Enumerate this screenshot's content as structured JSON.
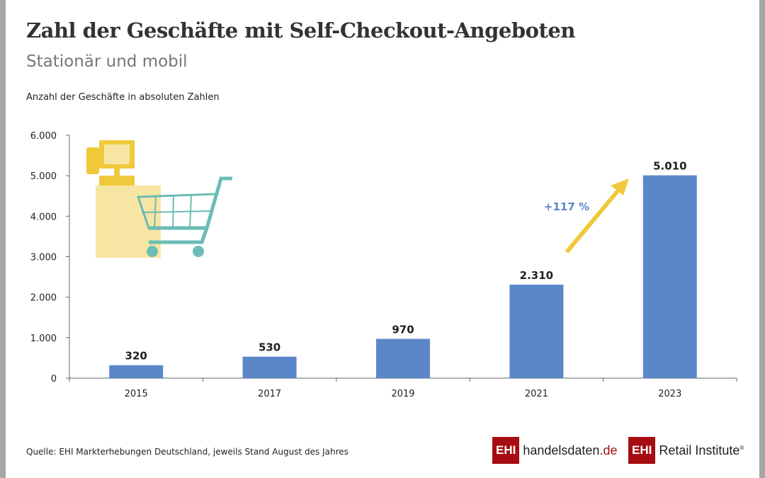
{
  "title": "Zahl der Geschäfte mit Self-Checkout-Angeboten",
  "subtitle": "Stationär und mobil",
  "source": "Quelle: EHI Markterhebungen Deutschland, jeweils Stand August des Jahres",
  "logos": {
    "ehi": "EHI",
    "handelsdaten": "handelsdaten",
    "handelsdaten_tld": ".de",
    "retail": "Retail Institute",
    "reg": "®"
  },
  "chart_data": {
    "type": "bar",
    "ylabel": "Anzahl der Geschäfte in absoluten Zahlen",
    "categories": [
      "2015",
      "2017",
      "2019",
      "2021",
      "2023"
    ],
    "values": [
      320,
      530,
      970,
      2310,
      5010
    ],
    "value_labels": [
      "320",
      "530",
      "970",
      "2.310",
      "5.010"
    ],
    "ylim": [
      0,
      6000
    ],
    "yticks": [
      0,
      1000,
      2000,
      3000,
      4000,
      5000,
      6000
    ],
    "ytick_labels": [
      "0",
      "1.000",
      "2.000",
      "3.000",
      "4.000",
      "5.000",
      "6.000"
    ],
    "annotation": "+117 %",
    "colors": {
      "bar": "#5b87c9",
      "arrow": "#f0c93a",
      "annotation": "#5b87c9"
    },
    "grid": false
  }
}
